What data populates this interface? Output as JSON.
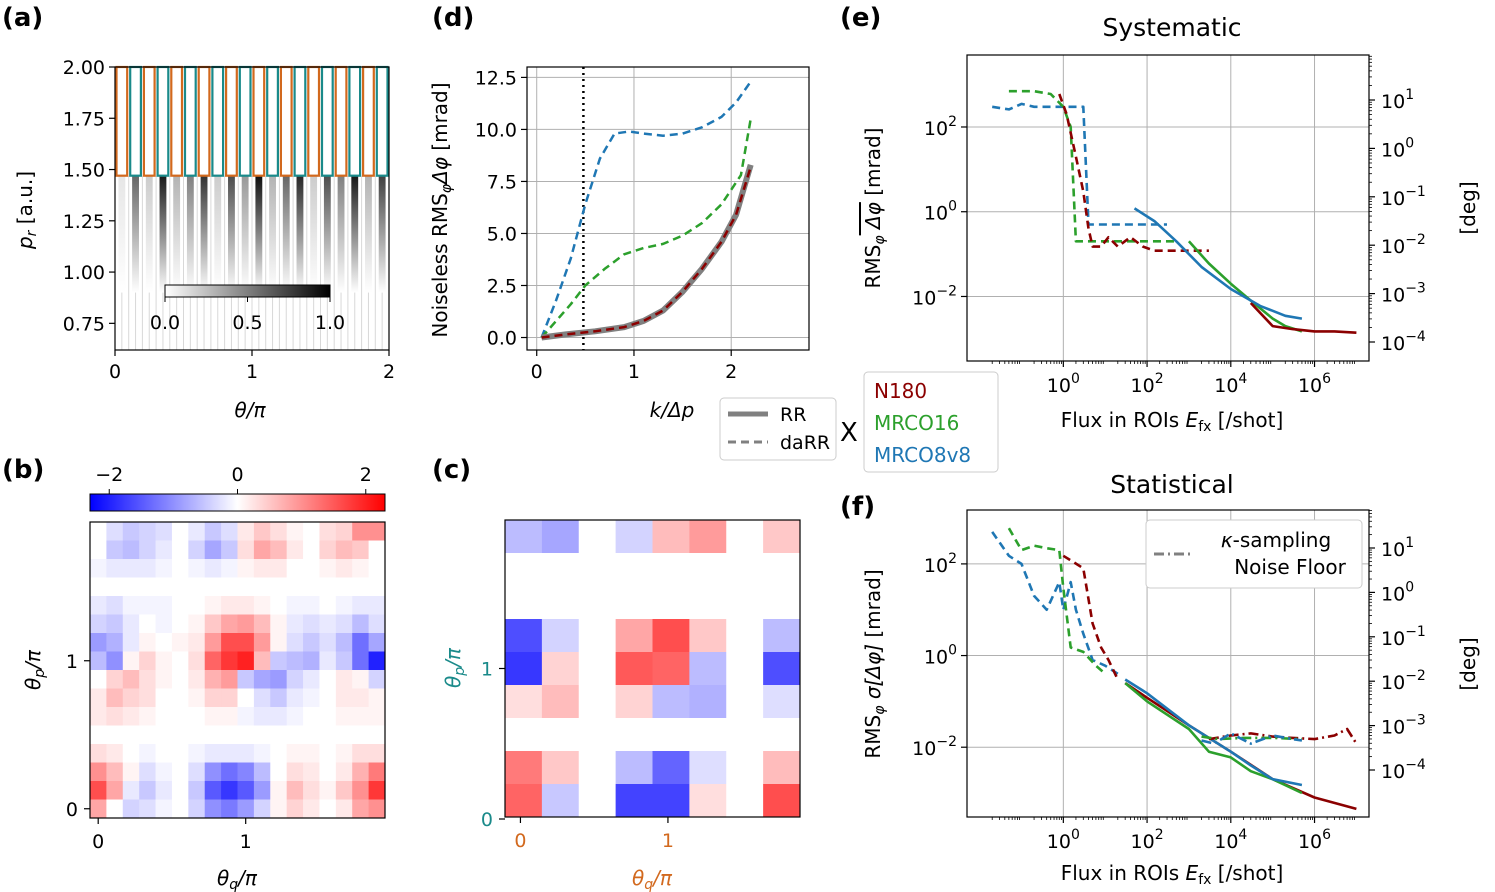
{
  "colors": {
    "N180": "#8b0000",
    "MRCO16": "#2ca02c",
    "MRCO8v8": "#1f77b4",
    "teal": "#1a8a8a",
    "orange": "#d2691e",
    "RR": "#808080"
  },
  "panel_labels": {
    "a": "(a)",
    "b": "(b)",
    "c": "(c)",
    "d": "(d)",
    "e": "(e)",
    "f": "(f)"
  },
  "chart_data": [
    {
      "id": "a",
      "type": "heatmap",
      "title": "",
      "xlabel": "θ/π",
      "ylabel": "p_r [a.u.]",
      "xlim": [
        0,
        2
      ],
      "ylim": [
        0.62,
        2.0
      ],
      "xticks": [
        "0",
        "1",
        "2"
      ],
      "yticks": [
        "0.75",
        "1.00",
        "1.25",
        "1.50",
        "1.75",
        "2.00"
      ],
      "colorbar": {
        "ticks": [
          "0.0",
          "0.5",
          "1.0"
        ],
        "range": [
          0,
          1
        ]
      },
      "stripe_intensity": [
        0.1,
        0.6,
        0.2,
        0.9,
        0.3,
        0.5,
        0.8,
        0.2,
        0.7,
        0.4,
        0.95,
        0.3,
        0.6,
        0.85,
        0.2,
        0.7,
        0.5,
        0.9,
        0.3,
        0.75
      ],
      "roi_top": 2.0,
      "roi_bottom": 1.47,
      "roi_count": 20
    },
    {
      "id": "d",
      "type": "line",
      "xlabel": "k/Δp",
      "ylabel": "Noiseless RMS_φΔφ [mrad]",
      "xlim": [
        -0.1,
        2.8
      ],
      "ylim": [
        -0.6,
        13.0
      ],
      "xticks": [
        "0",
        "1",
        "2"
      ],
      "yticks": [
        "0.0",
        "2.5",
        "5.0",
        "7.5",
        "10.0",
        "12.5"
      ],
      "vline_x": 0.48,
      "series": [
        {
          "name": "MRCO8v8",
          "style": "dashed",
          "x": [
            0.05,
            0.2,
            0.35,
            0.5,
            0.65,
            0.8,
            0.95,
            1.1,
            1.3,
            1.5,
            1.7,
            1.9,
            2.05,
            2.2
          ],
          "y": [
            0.0,
            1.8,
            3.8,
            6.4,
            8.6,
            9.8,
            9.9,
            9.8,
            9.7,
            9.8,
            10.1,
            10.6,
            11.3,
            12.3
          ]
        },
        {
          "name": "MRCO16",
          "style": "dashed",
          "x": [
            0.05,
            0.2,
            0.35,
            0.5,
            0.7,
            0.9,
            1.1,
            1.3,
            1.5,
            1.7,
            1.9,
            2.1,
            2.2
          ],
          "y": [
            0.0,
            0.8,
            1.6,
            2.5,
            3.3,
            4.0,
            4.3,
            4.5,
            4.9,
            5.5,
            6.4,
            7.8,
            10.5
          ]
        },
        {
          "name": "RR",
          "style": "solid",
          "x": [
            0.05,
            0.3,
            0.6,
            0.9,
            1.1,
            1.3,
            1.5,
            1.7,
            1.9,
            2.05,
            2.2
          ],
          "y": [
            0.0,
            0.15,
            0.3,
            0.5,
            0.8,
            1.3,
            2.2,
            3.3,
            4.6,
            5.9,
            8.3
          ]
        },
        {
          "name": "N180",
          "style": "dashed",
          "x": [
            0.05,
            0.3,
            0.6,
            0.9,
            1.1,
            1.3,
            1.5,
            1.7,
            1.9,
            2.05,
            2.2
          ],
          "y": [
            0.0,
            0.15,
            0.3,
            0.5,
            0.8,
            1.3,
            2.2,
            3.3,
            4.6,
            5.9,
            8.2
          ]
        }
      ],
      "legend": [
        {
          "label": "RR",
          "style": "solid"
        },
        {
          "label": "daRR",
          "style": "dashed"
        }
      ]
    },
    {
      "id": "e",
      "type": "line",
      "title": "Systematic",
      "xlabel": "Flux in ROIs E_fx [/shot]",
      "ylabel": "RMS_φ mean Δφ [mrad]",
      "y2label": "[deg]",
      "xscale": "log",
      "yscale": "log",
      "xlim": [
        0.005,
        20000000
      ],
      "ylim": [
        0.0003,
        5000
      ],
      "xticks": [
        "10^0",
        "10^2",
        "10^4",
        "10^6"
      ],
      "yticks": [
        "10^-2",
        "10^0",
        "10^2"
      ],
      "y2ticks": [
        "10^-4",
        "10^-3",
        "10^-2",
        "10^-1",
        "10^0",
        "10^1"
      ],
      "series": [
        {
          "name": "MRCO8v8",
          "style": "dashed",
          "x": [
            0.02,
            0.05,
            0.1,
            0.2,
            0.3,
            1,
            2,
            3,
            4,
            8,
            10,
            30,
            100,
            300
          ],
          "y": [
            300,
            260,
            350,
            300,
            300,
            300,
            300,
            300,
            0.5,
            0.5,
            0.5,
            0.5,
            0.5,
            0.5
          ]
        },
        {
          "name": "MRCO16",
          "style": "dashed",
          "x": [
            0.05,
            0.2,
            0.5,
            1,
            1.5,
            2,
            3,
            5,
            10,
            100,
            500
          ],
          "y": [
            700,
            700,
            600,
            300,
            100,
            0.2,
            0.2,
            0.2,
            0.2,
            0.2,
            0.2
          ]
        },
        {
          "name": "N180",
          "style": "dashed",
          "x": [
            0.8,
            1.2,
            2,
            3,
            4,
            5,
            8,
            12,
            20,
            40,
            80,
            150,
            300,
            1000,
            3000
          ],
          "y": [
            600,
            200,
            20,
            3,
            0.4,
            0.15,
            0.15,
            0.25,
            0.15,
            0.25,
            0.15,
            0.12,
            0.12,
            0.12,
            0.12
          ]
        },
        {
          "name": "MRCO16",
          "style": "solid",
          "x": [
            1000,
            3000,
            10000,
            30000,
            100000,
            200000,
            500000
          ],
          "y": [
            0.2,
            0.06,
            0.02,
            0.008,
            0.003,
            0.002,
            0.0015
          ]
        },
        {
          "name": "N180",
          "style": "solid",
          "x": [
            30000,
            100000,
            300000,
            1000000,
            3000000,
            10000000
          ],
          "y": [
            0.007,
            0.002,
            0.0017,
            0.0015,
            0.0015,
            0.0014
          ]
        },
        {
          "name": "MRCO8v8",
          "style": "solid",
          "x": [
            50,
            150,
            500,
            2000,
            10000,
            50000,
            200000,
            500000
          ],
          "y": [
            1.2,
            0.6,
            0.2,
            0.05,
            0.015,
            0.006,
            0.0035,
            0.003
          ]
        }
      ]
    },
    {
      "id": "f",
      "type": "line",
      "title": "Statistical",
      "xlabel": "Flux in ROIs E_fx [/shot]",
      "ylabel": "RMS_φ σ[Δφ] [mrad]",
      "y2label": "[deg]",
      "xscale": "log",
      "yscale": "log",
      "xlim": [
        0.005,
        20000000
      ],
      "ylim": [
        0.0003,
        1500
      ],
      "xticks": [
        "10^0",
        "10^2",
        "10^4",
        "10^6"
      ],
      "yticks": [
        "10^-2",
        "10^0",
        "10^2"
      ],
      "y2ticks": [
        "10^-4",
        "10^-3",
        "10^-2",
        "10^-1",
        "10^0",
        "10^1"
      ],
      "series": [
        {
          "name": "MRCO8v8",
          "style": "dashed",
          "x": [
            0.02,
            0.05,
            0.1,
            0.2,
            0.4,
            0.8,
            1,
            1.5,
            2,
            3,
            5,
            10,
            20
          ],
          "y": [
            500,
            150,
            100,
            20,
            10,
            40,
            10,
            40,
            10,
            3,
            0.8,
            0.6,
            0.4
          ]
        },
        {
          "name": "MRCO16",
          "style": "dashed",
          "x": [
            0.05,
            0.1,
            0.2,
            0.4,
            0.8,
            1,
            1.5,
            3,
            6,
            10
          ],
          "y": [
            600,
            200,
            250,
            220,
            200,
            30,
            1.5,
            1.2,
            0.6,
            0.4
          ]
        },
        {
          "name": "N180",
          "style": "dashed",
          "x": [
            1,
            1.5,
            3,
            5,
            8,
            12,
            20
          ],
          "y": [
            150,
            120,
            80,
            5,
            1.5,
            0.8,
            0.3
          ]
        },
        {
          "name": "N180",
          "style": "solid",
          "x": [
            30,
            100,
            1000,
            10000,
            100000,
            1000000,
            10000000
          ],
          "y": [
            0.25,
            0.12,
            0.03,
            0.008,
            0.002,
            0.0008,
            0.00045
          ]
        },
        {
          "name": "MRCO16",
          "style": "solid",
          "x": [
            30,
            100,
            1000,
            3000,
            10000,
            30000,
            100000,
            500000
          ],
          "y": [
            0.25,
            0.1,
            0.025,
            0.008,
            0.006,
            0.003,
            0.002,
            0.001
          ]
        },
        {
          "name": "MRCO8v8",
          "style": "solid",
          "x": [
            30,
            100,
            1000,
            10000,
            30000,
            100000,
            500000
          ],
          "y": [
            0.3,
            0.15,
            0.03,
            0.008,
            0.004,
            0.002,
            0.0015
          ]
        },
        {
          "name": "N180",
          "style": "dashdot",
          "x": [
            3000,
            10000,
            30000,
            100000,
            300000,
            1000000,
            3000000,
            6000000,
            10000000
          ],
          "y": [
            0.015,
            0.018,
            0.02,
            0.017,
            0.016,
            0.015,
            0.018,
            0.025,
            0.012
          ]
        },
        {
          "name": "MRCO16",
          "style": "dashdot",
          "x": [
            2000,
            5000,
            20000,
            100000,
            500000
          ],
          "y": [
            0.017,
            0.015,
            0.016,
            0.016,
            0.015
          ]
        },
        {
          "name": "MRCO8v8",
          "style": "dashdot",
          "x": [
            2000,
            4000,
            10000,
            30000,
            100000,
            300000,
            500000
          ],
          "y": [
            0.014,
            0.012,
            0.02,
            0.012,
            0.018,
            0.015,
            0.014
          ]
        }
      ],
      "legend": [
        {
          "label": "κ-sampling Noise Floor",
          "style": "dashdot"
        }
      ]
    },
    {
      "id": "b",
      "type": "heatmap",
      "xlabel": "θ_q/π",
      "ylabel": "θ_p/π",
      "xticks": [
        "0",
        "1"
      ],
      "yticks": [
        "0",
        "1"
      ],
      "colorbar": {
        "ticks": [
          "−2",
          "0",
          "2"
        ],
        "range": [
          -2.3,
          2.3
        ]
      },
      "rows": [
        [
          0.0,
          -0.3,
          -0.5,
          -0.4,
          -0.3,
          0.0,
          -0.2,
          -0.5,
          -0.3,
          0.2,
          0.5,
          0.3,
          0.1,
          0.0,
          0.3,
          0.4,
          1.0,
          1.0
        ],
        [
          0.0,
          -0.5,
          -0.6,
          -0.4,
          -0.2,
          0.0,
          -0.4,
          -0.8,
          -0.5,
          0.3,
          0.8,
          0.6,
          0.2,
          0.0,
          0.4,
          0.6,
          0.5,
          0.0
        ],
        [
          -0.1,
          -0.2,
          -0.2,
          -0.2,
          -0.1,
          0.0,
          -0.1,
          -0.2,
          -0.1,
          0.1,
          0.2,
          0.2,
          0.0,
          0.0,
          0.1,
          0.2,
          0.1,
          0.0
        ],
        [
          0.0,
          0.0,
          0.0,
          0.0,
          0.0,
          0.0,
          0.0,
          0.0,
          0.0,
          0.0,
          0.0,
          0.0,
          0.0,
          0.0,
          0.0,
          0.0,
          0.0,
          0.0
        ],
        [
          -0.2,
          -0.3,
          -0.1,
          -0.1,
          -0.1,
          0.0,
          0.0,
          0.1,
          0.2,
          0.2,
          0.1,
          0.0,
          -0.1,
          -0.1,
          0.0,
          -0.1,
          -0.2,
          -0.2
        ],
        [
          -0.4,
          -0.5,
          -0.2,
          0.0,
          -0.1,
          0.0,
          0.1,
          0.5,
          0.8,
          0.9,
          0.6,
          0.1,
          -0.2,
          -0.3,
          -0.2,
          -0.3,
          -0.6,
          -0.3
        ],
        [
          -0.9,
          -0.7,
          -0.2,
          0.1,
          0.0,
          0.1,
          0.2,
          0.9,
          1.6,
          1.6,
          0.9,
          0.1,
          -0.3,
          -0.5,
          -0.3,
          -0.6,
          -1.3,
          -0.8
        ],
        [
          -0.6,
          -1.0,
          0.1,
          0.4,
          0.1,
          0.0,
          0.3,
          1.4,
          1.8,
          2.0,
          0.6,
          -0.5,
          -0.6,
          -0.7,
          -0.2,
          -0.5,
          -1.3,
          -2.0
        ],
        [
          0.0,
          0.4,
          0.6,
          0.3,
          0.1,
          0.0,
          0.2,
          0.7,
          0.9,
          -0.5,
          -0.8,
          -0.9,
          -0.4,
          -0.2,
          0.0,
          0.2,
          0.1,
          -0.4
        ],
        [
          0.2,
          0.6,
          0.4,
          0.3,
          0.0,
          0.0,
          0.1,
          0.4,
          0.4,
          0.0,
          -0.3,
          -0.5,
          -0.2,
          -0.1,
          0.0,
          0.2,
          0.2,
          0.1
        ],
        [
          0.2,
          0.3,
          0.2,
          0.1,
          0.0,
          0.0,
          0.0,
          0.1,
          0.1,
          -0.1,
          -0.2,
          -0.2,
          -0.1,
          0.0,
          0.0,
          0.1,
          0.1,
          0.1
        ],
        [
          0.0,
          0.0,
          0.0,
          0.0,
          0.0,
          0.0,
          0.0,
          0.0,
          0.0,
          0.0,
          0.0,
          0.0,
          0.0,
          0.0,
          0.0,
          0.0,
          0.0,
          0.0
        ],
        [
          0.3,
          0.2,
          0.0,
          -0.1,
          0.0,
          0.0,
          -0.1,
          -0.2,
          -0.2,
          -0.2,
          -0.1,
          0.0,
          0.1,
          0.1,
          0.0,
          0.1,
          0.3,
          0.3
        ],
        [
          1.0,
          0.6,
          0.1,
          -0.3,
          -0.1,
          0.0,
          -0.3,
          -1.0,
          -1.3,
          -1.1,
          -0.6,
          0.0,
          0.3,
          0.2,
          0.0,
          0.2,
          0.7,
          1.2
        ],
        [
          1.6,
          0.8,
          -0.2,
          -0.5,
          -0.2,
          0.0,
          -0.5,
          -1.5,
          -1.8,
          -1.5,
          -0.9,
          0.1,
          0.6,
          0.3,
          0.1,
          0.5,
          1.0,
          1.8
        ],
        [
          0.8,
          0.0,
          -0.4,
          -0.3,
          -0.1,
          0.0,
          -0.4,
          -1.0,
          -1.2,
          -0.9,
          -0.4,
          0.1,
          0.4,
          0.2,
          0.0,
          0.2,
          0.8,
          1.0
        ]
      ]
    },
    {
      "id": "c",
      "type": "heatmap",
      "xlabel": "θ_q/π",
      "ylabel": "θ_p/π",
      "xticks": [
        "0",
        "1"
      ],
      "yticks": [
        "0",
        "1"
      ],
      "range": [
        -2.3,
        2.3
      ],
      "rows": [
        [
          -0.6,
          -0.8,
          0.0,
          -0.4,
          0.6,
          0.9,
          0.0,
          0.5
        ],
        [
          0.0,
          0.0,
          0.0,
          0.0,
          0.0,
          0.0,
          0.0,
          0.0
        ],
        [
          0.0,
          0.0,
          0.0,
          0.0,
          0.0,
          0.0,
          0.0,
          0.0
        ],
        [
          -1.6,
          -0.4,
          0.0,
          0.8,
          1.6,
          0.5,
          0.0,
          -0.6
        ],
        [
          -1.8,
          0.4,
          0.0,
          1.5,
          1.4,
          -0.6,
          0.0,
          -1.6
        ],
        [
          0.3,
          0.6,
          0.0,
          0.4,
          -0.6,
          -0.7,
          0.0,
          -0.3
        ],
        [
          0.0,
          0.0,
          0.0,
          0.0,
          0.0,
          0.0,
          0.0,
          0.0
        ],
        [
          1.2,
          0.5,
          0.0,
          -0.6,
          -1.4,
          -0.3,
          0.0,
          0.6
        ],
        [
          1.4,
          -0.5,
          0.0,
          -1.7,
          -1.7,
          0.3,
          0.0,
          1.6
        ]
      ]
    }
  ],
  "legend_center": {
    "items": [
      "N180",
      "MRCO16",
      "MRCO8v8"
    ],
    "mark": "X"
  }
}
